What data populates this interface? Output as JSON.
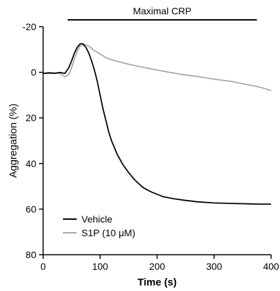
{
  "chart_data": {
    "type": "line",
    "title": "",
    "xlabel": "Time (s)",
    "ylabel": "Aggregation (%)",
    "xlim": [
      0,
      400
    ],
    "ylim": [
      -20,
      80
    ],
    "y_inverted": true,
    "x_ticks": [
      0,
      100,
      200,
      300,
      400
    ],
    "y_ticks": [
      -20,
      0,
      20,
      40,
      60,
      80
    ],
    "grid": false,
    "legend_position": "bottom-left",
    "annotation": {
      "label": "Maximal CRP",
      "x_start": 43,
      "x_end": 375
    },
    "series": [
      {
        "name": "Vehicle",
        "color": "#000000",
        "x": [
          0,
          10,
          20,
          30,
          38,
          45,
          50,
          55,
          60,
          65,
          70,
          75,
          80,
          85,
          90,
          95,
          100,
          105,
          110,
          115,
          120,
          125,
          130,
          140,
          150,
          160,
          175,
          190,
          210,
          230,
          250,
          270,
          300,
          330,
          360,
          380,
          400
        ],
        "y": [
          0.5,
          0.2,
          0.4,
          0.1,
          0.5,
          -2,
          -5,
          -8.5,
          -11,
          -12.5,
          -12.5,
          -11,
          -8.5,
          -5,
          -1,
          4,
          10,
          16,
          21,
          26,
          30,
          33,
          36,
          40.5,
          44,
          47,
          50.5,
          52.5,
          54.5,
          55.5,
          56.2,
          56.8,
          57.3,
          57.5,
          57.7,
          57.8,
          57.8
        ]
      },
      {
        "name": "S1P (10 μM)",
        "color": "#a8a8a8",
        "x": [
          0,
          30,
          38,
          45,
          50,
          55,
          60,
          65,
          70,
          75,
          80,
          85,
          90,
          100,
          110,
          120,
          135,
          150,
          170,
          190,
          210,
          240,
          270,
          300,
          330,
          360,
          380,
          400
        ],
        "y": [
          0.5,
          0.5,
          2,
          1,
          -2,
          -6,
          -9.5,
          -11.5,
          -12,
          -12,
          -11.5,
          -10.5,
          -9.5,
          -8,
          -6.5,
          -5.5,
          -4.5,
          -3.5,
          -2.5,
          -1.5,
          -0.5,
          0.8,
          1.8,
          3,
          4,
          5.5,
          6.5,
          8
        ]
      }
    ]
  }
}
